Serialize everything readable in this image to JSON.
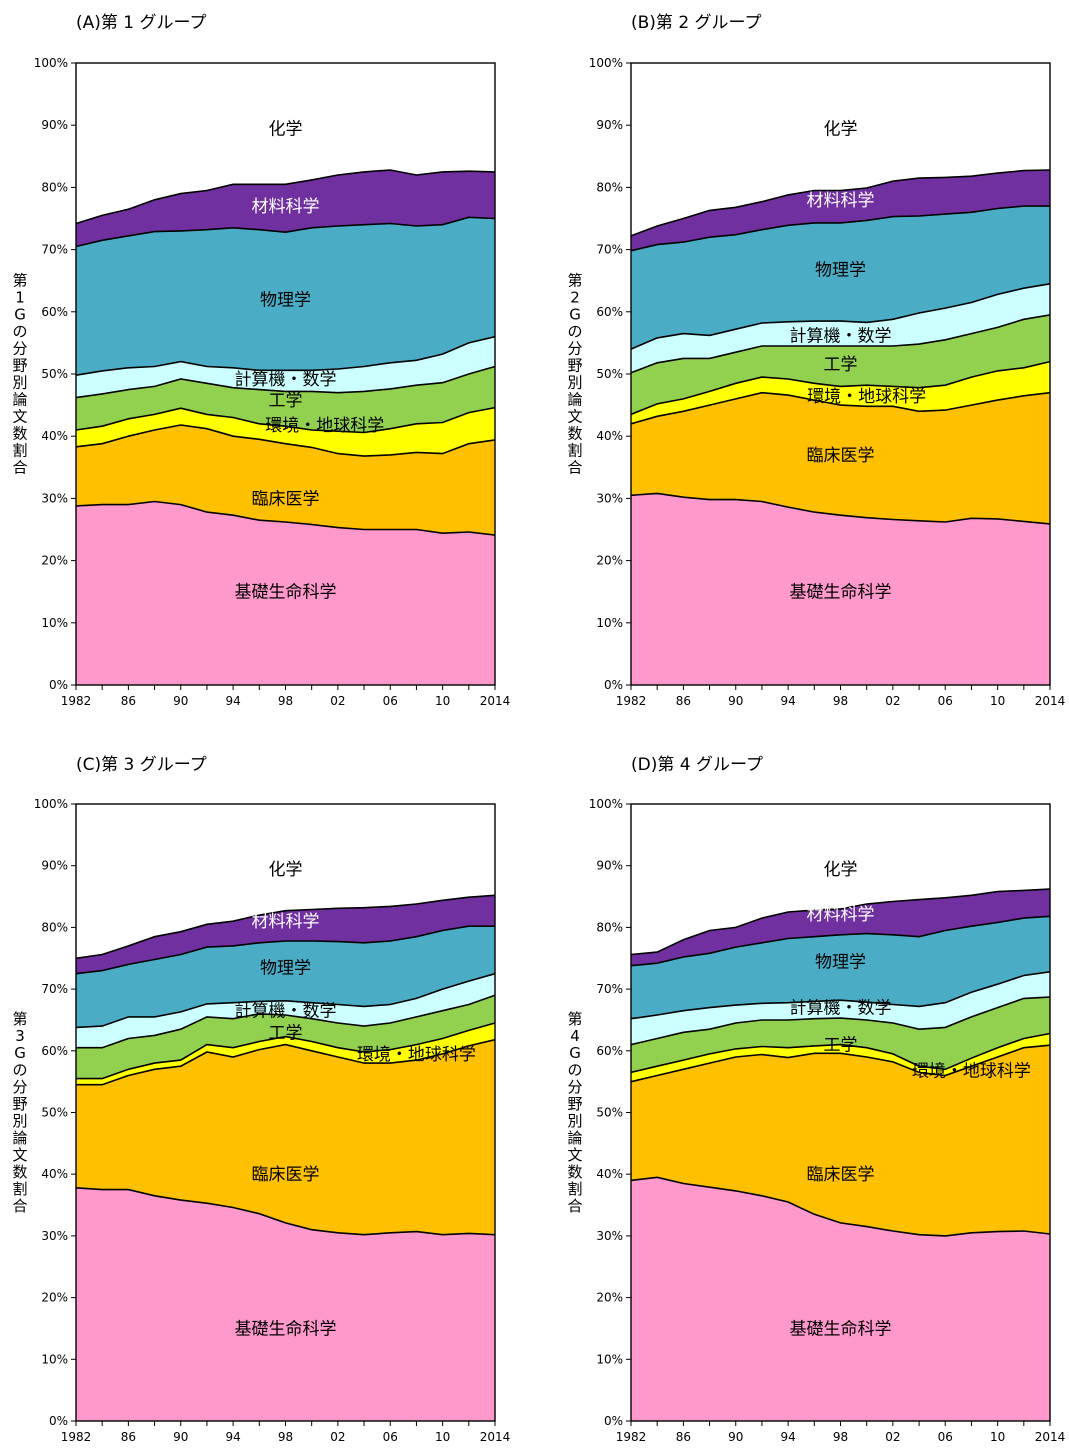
{
  "chart_data": [
    {
      "type": "area",
      "title": "(A)第 1 グループ",
      "ylabel": "第1Gの分野別論文数割合",
      "ylim": [
        0,
        100
      ],
      "yticks": [
        "0%",
        "10%",
        "20%",
        "30%",
        "40%",
        "50%",
        "60%",
        "70%",
        "80%",
        "90%",
        "100%"
      ],
      "xticks": [
        "1982",
        "86",
        "90",
        "94",
        "98",
        "02",
        "06",
        "10",
        "2014"
      ],
      "x": [
        1982,
        1984,
        1986,
        1988,
        1990,
        1992,
        1994,
        1996,
        1998,
        2000,
        2002,
        2004,
        2006,
        2008,
        2010,
        2012,
        2014
      ],
      "series_unit": "cumulative upper boundary (%)",
      "series": [
        {
          "name": "基礎生命科学",
          "color": "#ff99cc",
          "values": [
            28.8,
            29.0,
            29.0,
            29.5,
            29.0,
            27.8,
            27.3,
            26.5,
            26.2,
            25.8,
            25.3,
            25.0,
            25.0,
            25.0,
            24.4,
            24.6,
            24.1
          ]
        },
        {
          "name": "臨床医学",
          "color": "#ffc000",
          "values": [
            38.3,
            38.8,
            40.0,
            41.0,
            41.8,
            41.2,
            40.0,
            39.5,
            38.8,
            38.2,
            37.2,
            36.8,
            37.0,
            37.4,
            37.2,
            38.8,
            39.4
          ]
        },
        {
          "name": "環境・地球科学",
          "color": "#ffff00",
          "values": [
            41.0,
            41.6,
            42.8,
            43.5,
            44.5,
            43.5,
            43.0,
            42.0,
            41.6,
            41.0,
            40.8,
            40.6,
            41.2,
            42.0,
            42.2,
            43.8,
            44.6
          ]
        },
        {
          "name": "工学",
          "color": "#92d050",
          "values": [
            46.2,
            46.8,
            47.5,
            48.0,
            49.2,
            48.5,
            47.8,
            47.5,
            47.2,
            47.2,
            47.0,
            47.2,
            47.6,
            48.2,
            48.6,
            50.0,
            51.2
          ]
        },
        {
          "name": "計算機・数学",
          "color": "#ccffff",
          "values": [
            49.8,
            50.5,
            51.0,
            51.2,
            52.0,
            51.2,
            51.0,
            50.6,
            50.6,
            50.6,
            50.8,
            51.2,
            51.8,
            52.2,
            53.2,
            55.0,
            56.0
          ]
        },
        {
          "name": "物理学",
          "color": "#4bacc6",
          "values": [
            70.5,
            71.5,
            72.2,
            72.9,
            73.0,
            73.2,
            73.5,
            73.2,
            72.8,
            73.5,
            73.8,
            74.0,
            74.2,
            73.8,
            74.0,
            75.2,
            75.0
          ]
        },
        {
          "name": "材料科学",
          "color": "#7030a0",
          "values": [
            74.2,
            75.5,
            76.5,
            78.0,
            79.0,
            79.5,
            80.5,
            80.5,
            80.5,
            81.2,
            82.0,
            82.5,
            82.8,
            82.0,
            82.5,
            82.6,
            82.5
          ]
        },
        {
          "name": "化学",
          "color": "#ffffff",
          "values": [
            100,
            100,
            100,
            100,
            100,
            100,
            100,
            100,
            100,
            100,
            100,
            100,
            100,
            100,
            100,
            100,
            100
          ]
        }
      ],
      "labels": [
        "基礎生命科学",
        "臨床医学",
        "環境・地球科学",
        "工学",
        "計算機・数学",
        "物理学",
        "材料科学",
        "化学"
      ]
    },
    {
      "type": "area",
      "title": "(B)第 2 グループ",
      "ylabel": "第2Gの分野別論文数割合",
      "ylim": [
        0,
        100
      ],
      "yticks": [
        "0%",
        "10%",
        "20%",
        "30%",
        "40%",
        "50%",
        "60%",
        "70%",
        "80%",
        "90%",
        "100%"
      ],
      "xticks": [
        "1982",
        "86",
        "90",
        "94",
        "98",
        "02",
        "06",
        "10",
        "2014"
      ],
      "x": [
        1982,
        1984,
        1986,
        1988,
        1990,
        1992,
        1994,
        1996,
        1998,
        2000,
        2002,
        2004,
        2006,
        2008,
        2010,
        2012,
        2014
      ],
      "series_unit": "cumulative upper boundary (%)",
      "series": [
        {
          "name": "基礎生命科学",
          "color": "#ff99cc",
          "values": [
            30.5,
            30.8,
            30.2,
            29.8,
            29.8,
            29.5,
            28.6,
            27.8,
            27.3,
            26.9,
            26.6,
            26.4,
            26.2,
            26.8,
            26.7,
            26.3,
            25.9
          ]
        },
        {
          "name": "臨床医学",
          "color": "#ffc000",
          "values": [
            42.0,
            43.2,
            44.0,
            45.0,
            46.0,
            47.0,
            46.6,
            45.8,
            45.0,
            44.8,
            44.8,
            44.0,
            44.2,
            45.0,
            45.8,
            46.5,
            47.0
          ]
        },
        {
          "name": "環境・地球科学",
          "color": "#ffff00",
          "values": [
            43.5,
            45.2,
            46.0,
            47.2,
            48.5,
            49.5,
            49.2,
            48.5,
            48.0,
            48.2,
            48.0,
            47.8,
            48.2,
            49.5,
            50.5,
            51.0,
            52.0
          ]
        },
        {
          "name": "工学",
          "color": "#92d050",
          "values": [
            50.2,
            51.8,
            52.5,
            52.5,
            53.5,
            54.5,
            54.5,
            54.5,
            54.5,
            54.5,
            54.5,
            54.8,
            55.5,
            56.5,
            57.5,
            58.8,
            59.5
          ]
        },
        {
          "name": "計算機・数学",
          "color": "#ccffff",
          "values": [
            54.0,
            55.8,
            56.5,
            56.2,
            57.2,
            58.2,
            58.4,
            58.5,
            58.5,
            58.3,
            58.8,
            59.8,
            60.6,
            61.5,
            62.8,
            63.8,
            64.5
          ]
        },
        {
          "name": "物理学",
          "color": "#4bacc6",
          "values": [
            69.8,
            70.8,
            71.2,
            72.0,
            72.4,
            73.2,
            73.9,
            74.3,
            74.3,
            74.7,
            75.3,
            75.4,
            75.7,
            76.0,
            76.6,
            77.0,
            77.0
          ]
        },
        {
          "name": "材料科学",
          "color": "#7030a0",
          "values": [
            72.2,
            73.8,
            75.0,
            76.3,
            76.8,
            77.7,
            78.8,
            79.5,
            79.5,
            79.9,
            81.0,
            81.5,
            81.6,
            81.8,
            82.3,
            82.7,
            82.8
          ]
        },
        {
          "name": "化学",
          "color": "#ffffff",
          "values": [
            100,
            100,
            100,
            100,
            100,
            100,
            100,
            100,
            100,
            100,
            100,
            100,
            100,
            100,
            100,
            100,
            100
          ]
        }
      ],
      "labels": [
        "基礎生命科学",
        "臨床医学",
        "環境・地球科学",
        "工学",
        "計算機・数学",
        "物理学",
        "材料科学",
        "化学"
      ]
    },
    {
      "type": "area",
      "title": "(C)第 3 グループ",
      "ylabel": "第3Gの分野別論文数割合",
      "ylim": [
        0,
        100
      ],
      "yticks": [
        "0%",
        "10%",
        "20%",
        "30%",
        "40%",
        "50%",
        "60%",
        "70%",
        "80%",
        "90%",
        "100%"
      ],
      "xticks": [
        "1982",
        "86",
        "90",
        "94",
        "98",
        "02",
        "06",
        "10",
        "2014"
      ],
      "x": [
        1982,
        1984,
        1986,
        1988,
        1990,
        1992,
        1994,
        1996,
        1998,
        2000,
        2002,
        2004,
        2006,
        2008,
        2010,
        2012,
        2014
      ],
      "series_unit": "cumulative upper boundary (%)",
      "series": [
        {
          "name": "基礎生命科学",
          "color": "#ff99cc",
          "values": [
            37.8,
            37.5,
            37.5,
            36.5,
            35.8,
            35.3,
            34.6,
            33.6,
            32.1,
            31.0,
            30.5,
            30.2,
            30.5,
            30.7,
            30.2,
            30.4,
            30.2
          ]
        },
        {
          "name": "臨床医学",
          "color": "#ffc000",
          "values": [
            54.5,
            54.5,
            56.0,
            57.0,
            57.5,
            59.8,
            59.0,
            60.2,
            61.0,
            60.0,
            59.0,
            58.0,
            58.0,
            58.5,
            59.5,
            60.8,
            61.8
          ]
        },
        {
          "name": "環境・地球科学",
          "color": "#ffff00",
          "values": [
            55.5,
            55.5,
            57.0,
            58.0,
            58.5,
            61.0,
            60.5,
            61.5,
            62.3,
            61.5,
            60.5,
            59.8,
            60.2,
            61.0,
            62.0,
            63.3,
            64.5
          ]
        },
        {
          "name": "工学",
          "color": "#92d050",
          "values": [
            60.5,
            60.5,
            62.0,
            62.5,
            63.5,
            65.5,
            65.2,
            66.0,
            65.8,
            65.2,
            64.5,
            64.0,
            64.5,
            65.5,
            66.5,
            67.5,
            69.0
          ]
        },
        {
          "name": "計算機・数学",
          "color": "#ccffff",
          "values": [
            63.8,
            64.0,
            65.5,
            65.5,
            66.3,
            67.6,
            67.8,
            68.0,
            68.1,
            67.8,
            67.5,
            67.2,
            67.5,
            68.5,
            70.0,
            71.3,
            72.5
          ]
        },
        {
          "name": "物理学",
          "color": "#4bacc6",
          "values": [
            72.5,
            73.0,
            74.0,
            74.8,
            75.6,
            76.8,
            77.0,
            77.5,
            77.8,
            77.8,
            77.7,
            77.5,
            77.8,
            78.5,
            79.5,
            80.2,
            80.2
          ]
        },
        {
          "name": "材料科学",
          "color": "#7030a0",
          "values": [
            75.0,
            75.6,
            77.0,
            78.5,
            79.3,
            80.5,
            81.0,
            82.0,
            82.7,
            82.9,
            83.1,
            83.2,
            83.4,
            83.8,
            84.4,
            84.9,
            85.2
          ]
        },
        {
          "name": "化学",
          "color": "#ffffff",
          "values": [
            100,
            100,
            100,
            100,
            100,
            100,
            100,
            100,
            100,
            100,
            100,
            100,
            100,
            100,
            100,
            100,
            100
          ]
        }
      ],
      "labels": [
        "基礎生命科学",
        "臨床医学",
        "環境・地球科学",
        "工学",
        "計算機・数学",
        "物理学",
        "材料科学",
        "化学"
      ]
    },
    {
      "type": "area",
      "title": "(D)第 4 グループ",
      "ylabel": "第4Gの分野別論文数割合",
      "ylim": [
        0,
        100
      ],
      "yticks": [
        "0%",
        "10%",
        "20%",
        "30%",
        "40%",
        "50%",
        "60%",
        "70%",
        "80%",
        "90%",
        "100%"
      ],
      "xticks": [
        "1982",
        "86",
        "90",
        "94",
        "98",
        "02",
        "06",
        "10",
        "2014"
      ],
      "x": [
        1982,
        1984,
        1986,
        1988,
        1990,
        1992,
        1994,
        1996,
        1998,
        2000,
        2002,
        2004,
        2006,
        2008,
        2010,
        2012,
        2014
      ],
      "series_unit": "cumulative upper boundary (%)",
      "series": [
        {
          "name": "基礎生命科学",
          "color": "#ff99cc",
          "values": [
            39.0,
            39.5,
            38.5,
            37.9,
            37.3,
            36.5,
            35.5,
            33.5,
            32.1,
            31.5,
            30.8,
            30.2,
            30.0,
            30.5,
            30.7,
            30.8,
            30.3
          ]
        },
        {
          "name": "臨床医学",
          "color": "#ffc000",
          "values": [
            55.0,
            56.0,
            57.0,
            58.0,
            59.0,
            59.4,
            58.9,
            59.6,
            59.6,
            59.0,
            58.2,
            56.5,
            56.0,
            57.5,
            59.0,
            60.5,
            60.9
          ]
        },
        {
          "name": "環境・地球科学",
          "color": "#ffff00",
          "values": [
            56.5,
            57.5,
            58.5,
            59.5,
            60.3,
            60.7,
            60.5,
            60.8,
            61.0,
            60.5,
            59.5,
            57.5,
            57.0,
            58.8,
            60.5,
            62.0,
            62.8
          ]
        },
        {
          "name": "工学",
          "color": "#92d050",
          "values": [
            61.0,
            62.0,
            63.0,
            63.5,
            64.5,
            65.0,
            65.0,
            65.2,
            65.3,
            65.0,
            64.5,
            63.5,
            63.8,
            65.5,
            67.0,
            68.5,
            68.7
          ]
        },
        {
          "name": "計算機・数学",
          "color": "#ccffff",
          "values": [
            65.2,
            65.8,
            66.5,
            67.0,
            67.4,
            67.7,
            67.8,
            68.0,
            68.2,
            67.9,
            67.5,
            67.2,
            67.8,
            69.5,
            70.8,
            72.2,
            72.8
          ]
        },
        {
          "name": "物理学",
          "color": "#4bacc6",
          "values": [
            73.8,
            74.2,
            75.2,
            75.8,
            76.8,
            77.5,
            78.2,
            78.5,
            78.8,
            79.0,
            78.8,
            78.5,
            79.5,
            80.2,
            80.8,
            81.5,
            81.8
          ]
        },
        {
          "name": "材料科学",
          "color": "#7030a0",
          "values": [
            75.6,
            76.0,
            78.0,
            79.5,
            80.0,
            81.5,
            82.5,
            82.8,
            83.0,
            83.8,
            84.2,
            84.5,
            84.8,
            85.2,
            85.8,
            86.0,
            86.2
          ]
        },
        {
          "name": "化学",
          "color": "#ffffff",
          "values": [
            100,
            100,
            100,
            100,
            100,
            100,
            100,
            100,
            100,
            100,
            100,
            100,
            100,
            100,
            100,
            100,
            100
          ]
        }
      ],
      "labels": [
        "基礎生命科学",
        "臨床医学",
        "環境・地球科学",
        "工学",
        "計算機・数学",
        "物理学",
        "材料科学",
        "化学"
      ]
    }
  ]
}
